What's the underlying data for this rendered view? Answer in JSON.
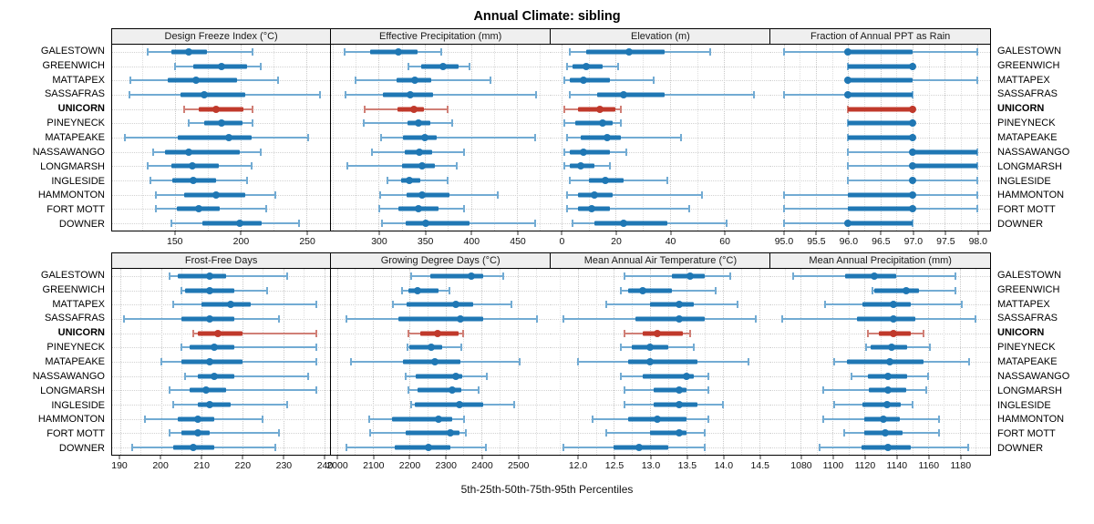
{
  "title": "Annual Climate: sibling",
  "caption": "5th-25th-50th-75th-95th Percentiles",
  "highlight_location": "UNICORN",
  "locations": [
    "GALESTOWN",
    "GREENWICH",
    "MATTAPEX",
    "SASSAFRAS",
    "UNICORN",
    "PINEYNECK",
    "MATAPEAKE",
    "NASSAWANGO",
    "LONGMARSH",
    "INGLESIDE",
    "HAMMONTON",
    "FORT MOTT",
    "DOWNER"
  ],
  "colors": {
    "series_blue": "#1f77b4",
    "series_blue_whisker": "#72abd3",
    "highlight_red": "#c0392b",
    "highlight_red_whisker": "#d07f76",
    "grid": "#c9c9c9",
    "panel_header_bg": "#efefef",
    "border": "#000000"
  },
  "chart_data": {
    "type": "dot-whisker-percentile",
    "percentiles": [
      5,
      25,
      50,
      75,
      95
    ],
    "layout": {
      "grid_rows": 2,
      "grid_cols": 4,
      "legend": "none",
      "gridlines": "dotted",
      "rows_are": "locations"
    },
    "panels": [
      {
        "title": "Design Freeze Index (°C)",
        "axis_min": 102,
        "axis_max": 268,
        "tick_labels": [
          "150",
          "200",
          "250"
        ],
        "series": [
          [
            129,
            147,
            160,
            174,
            209
          ],
          [
            150,
            164,
            185,
            205,
            215
          ],
          [
            116,
            144,
            166,
            197,
            228
          ],
          [
            115,
            154,
            172,
            203,
            260
          ],
          [
            157,
            168,
            181,
            202,
            209
          ],
          [
            160,
            172,
            185,
            201,
            209
          ],
          [
            112,
            152,
            191,
            208,
            251
          ],
          [
            133,
            142,
            160,
            199,
            215
          ],
          [
            129,
            147,
            163,
            183,
            208
          ],
          [
            131,
            148,
            164,
            181,
            205
          ],
          [
            135,
            157,
            181,
            203,
            226
          ],
          [
            135,
            151,
            168,
            184,
            219
          ],
          [
            147,
            171,
            199,
            216,
            244
          ]
        ]
      },
      {
        "title": "Effective Precipitation (mm)",
        "axis_min": 248,
        "axis_max": 486,
        "tick_labels": [
          "300",
          "350",
          "400",
          "450"
        ],
        "series": [
          [
            263,
            291,
            321,
            342,
            368
          ],
          [
            332,
            346,
            370,
            387,
            398
          ],
          [
            275,
            319,
            339,
            357,
            421
          ],
          [
            264,
            305,
            334,
            359,
            471
          ],
          [
            285,
            320,
            338,
            349,
            375
          ],
          [
            284,
            331,
            343,
            356,
            380
          ],
          [
            303,
            326,
            350,
            363,
            470
          ],
          [
            293,
            328,
            344,
            358,
            393
          ],
          [
            266,
            325,
            347,
            361,
            385
          ],
          [
            309,
            324,
            333,
            345,
            375
          ],
          [
            302,
            330,
            347,
            377,
            429
          ],
          [
            301,
            321,
            343,
            365,
            393
          ],
          [
            304,
            329,
            351,
            398,
            470
          ]
        ]
      },
      {
        "title": "Elevation (m)",
        "axis_min": -4,
        "axis_max": 77,
        "tick_labels": [
          "0",
          "20",
          "40",
          "60"
        ],
        "series": [
          [
            3,
            9,
            25,
            38,
            55
          ],
          [
            2,
            4,
            9,
            15,
            21
          ],
          [
            1,
            3,
            8,
            18,
            34
          ],
          [
            3,
            13,
            23,
            38,
            71
          ],
          [
            1,
            6,
            14,
            20,
            22
          ],
          [
            1,
            5,
            15,
            19,
            22
          ],
          [
            2,
            7,
            17,
            22,
            44
          ],
          [
            1,
            3,
            8,
            18,
            24
          ],
          [
            1,
            3,
            7,
            12,
            18
          ],
          [
            3,
            10,
            16,
            23,
            39
          ],
          [
            2,
            6,
            12,
            19,
            52
          ],
          [
            2,
            6,
            11,
            18,
            47
          ],
          [
            4,
            12,
            23,
            39,
            61
          ]
        ]
      },
      {
        "title": "Fraction of Annual PPT as Rain",
        "axis_min": 94.8,
        "axis_max": 98.2,
        "tick_labels": [
          "95.0",
          "95.5",
          "96.0",
          "96.5",
          "97.0",
          "97.5",
          "98.0"
        ],
        "series": [
          [
            95,
            96,
            96,
            97,
            98
          ],
          [
            96,
            96,
            97,
            97,
            97
          ],
          [
            96,
            96,
            96,
            97,
            98
          ],
          [
            95,
            96,
            96,
            97,
            97
          ],
          [
            96,
            96,
            97,
            97,
            97
          ],
          [
            96,
            96,
            97,
            97,
            97
          ],
          [
            96,
            96,
            97,
            97,
            97
          ],
          [
            96,
            97,
            97,
            98,
            98
          ],
          [
            96,
            97,
            97,
            98,
            98
          ],
          [
            96,
            97,
            97,
            97,
            98
          ],
          [
            95,
            96,
            97,
            97,
            98
          ],
          [
            95,
            96,
            97,
            97,
            98
          ],
          [
            95,
            96,
            96,
            97,
            97
          ]
        ]
      },
      {
        "title": "Frost-Free Days",
        "axis_min": 188,
        "axis_max": 241.5,
        "tick_labels": [
          "190",
          "200",
          "210",
          "220",
          "230",
          "240"
        ],
        "series": [
          [
            202,
            204,
            212,
            216,
            231
          ],
          [
            205,
            206,
            212,
            218,
            226
          ],
          [
            203,
            210,
            217,
            222,
            238
          ],
          [
            191,
            205,
            212,
            218,
            229
          ],
          [
            208,
            209,
            214,
            220,
            238
          ],
          [
            205,
            207,
            213,
            218,
            238
          ],
          [
            200,
            205,
            212,
            220,
            238
          ],
          [
            206,
            209,
            213,
            218,
            236
          ],
          [
            202,
            207,
            211,
            216,
            238
          ],
          [
            203,
            209,
            212,
            217,
            231
          ],
          [
            196,
            204,
            209,
            213,
            225
          ],
          [
            202,
            205,
            209,
            212,
            229
          ],
          [
            193,
            203,
            208,
            213,
            228
          ]
        ]
      },
      {
        "title": "Growing Degree Days (°C)",
        "axis_min": 1983,
        "axis_max": 2590,
        "tick_labels": [
          "2000",
          "2100",
          "2200",
          "2300",
          "2400",
          "2500"
        ],
        "series": [
          [
            2206,
            2258,
            2372,
            2404,
            2461
          ],
          [
            2181,
            2199,
            2224,
            2281,
            2312
          ],
          [
            2156,
            2193,
            2329,
            2377,
            2482
          ],
          [
            2026,
            2170,
            2341,
            2404,
            2553
          ],
          [
            2197,
            2231,
            2279,
            2337,
            2348
          ],
          [
            2195,
            2201,
            2262,
            2291,
            2344
          ],
          [
            2038,
            2182,
            2270,
            2341,
            2505
          ],
          [
            2190,
            2218,
            2330,
            2346,
            2415
          ],
          [
            2197,
            2222,
            2319,
            2345,
            2392
          ],
          [
            2206,
            2216,
            2340,
            2404,
            2490
          ],
          [
            2089,
            2153,
            2281,
            2319,
            2352
          ],
          [
            2093,
            2191,
            2315,
            2340,
            2357
          ],
          [
            2026,
            2160,
            2252,
            2315,
            2411
          ]
        ]
      },
      {
        "title": "Mean Annual Air Temperature (°C)",
        "axis_min": 11.63,
        "axis_max": 14.65,
        "tick_labels": [
          "12.0",
          "12.5",
          "13.0",
          "13.5",
          "14.0",
          "14.5"
        ],
        "series": [
          [
            12.65,
            13.3,
            13.55,
            13.75,
            14.1
          ],
          [
            12.6,
            12.7,
            12.9,
            13.3,
            13.9
          ],
          [
            12.4,
            13.0,
            13.4,
            13.6,
            14.2
          ],
          [
            11.8,
            12.8,
            13.4,
            13.75,
            14.45
          ],
          [
            12.65,
            12.9,
            13.1,
            13.45,
            13.55
          ],
          [
            12.6,
            12.75,
            13.0,
            13.25,
            13.6
          ],
          [
            12.0,
            12.7,
            13.0,
            13.65,
            14.35
          ],
          [
            12.6,
            12.9,
            13.5,
            13.6,
            13.8
          ],
          [
            12.65,
            13.05,
            13.4,
            13.5,
            13.8
          ],
          [
            12.65,
            13.05,
            13.4,
            13.65,
            14.0
          ],
          [
            12.2,
            12.7,
            13.1,
            13.5,
            13.8
          ],
          [
            12.4,
            13.0,
            13.4,
            13.5,
            13.75
          ],
          [
            11.8,
            12.5,
            12.85,
            13.25,
            13.75
          ]
        ]
      },
      {
        "title": "Mean Annual Precipitation (mm)",
        "axis_min": 1061,
        "axis_max": 1199,
        "tick_labels": [
          "1080",
          "1100",
          "1120",
          "1140",
          "1160",
          "1180"
        ],
        "series": [
          [
            1075,
            1108,
            1126,
            1140,
            1177
          ],
          [
            1125,
            1126,
            1146,
            1154,
            1177
          ],
          [
            1095,
            1119,
            1138,
            1149,
            1181
          ],
          [
            1068,
            1115,
            1138,
            1152,
            1190
          ],
          [
            1122,
            1129,
            1138,
            1149,
            1157
          ],
          [
            1121,
            1124,
            1137,
            1147,
            1161
          ],
          [
            1101,
            1109,
            1136,
            1157,
            1186
          ],
          [
            1112,
            1122,
            1135,
            1147,
            1160
          ],
          [
            1094,
            1123,
            1135,
            1146,
            1159
          ],
          [
            1101,
            1119,
            1134,
            1143,
            1150
          ],
          [
            1094,
            1120,
            1132,
            1142,
            1167
          ],
          [
            1107,
            1120,
            1133,
            1144,
            1167
          ],
          [
            1092,
            1118,
            1135,
            1149,
            1185
          ]
        ]
      }
    ]
  }
}
